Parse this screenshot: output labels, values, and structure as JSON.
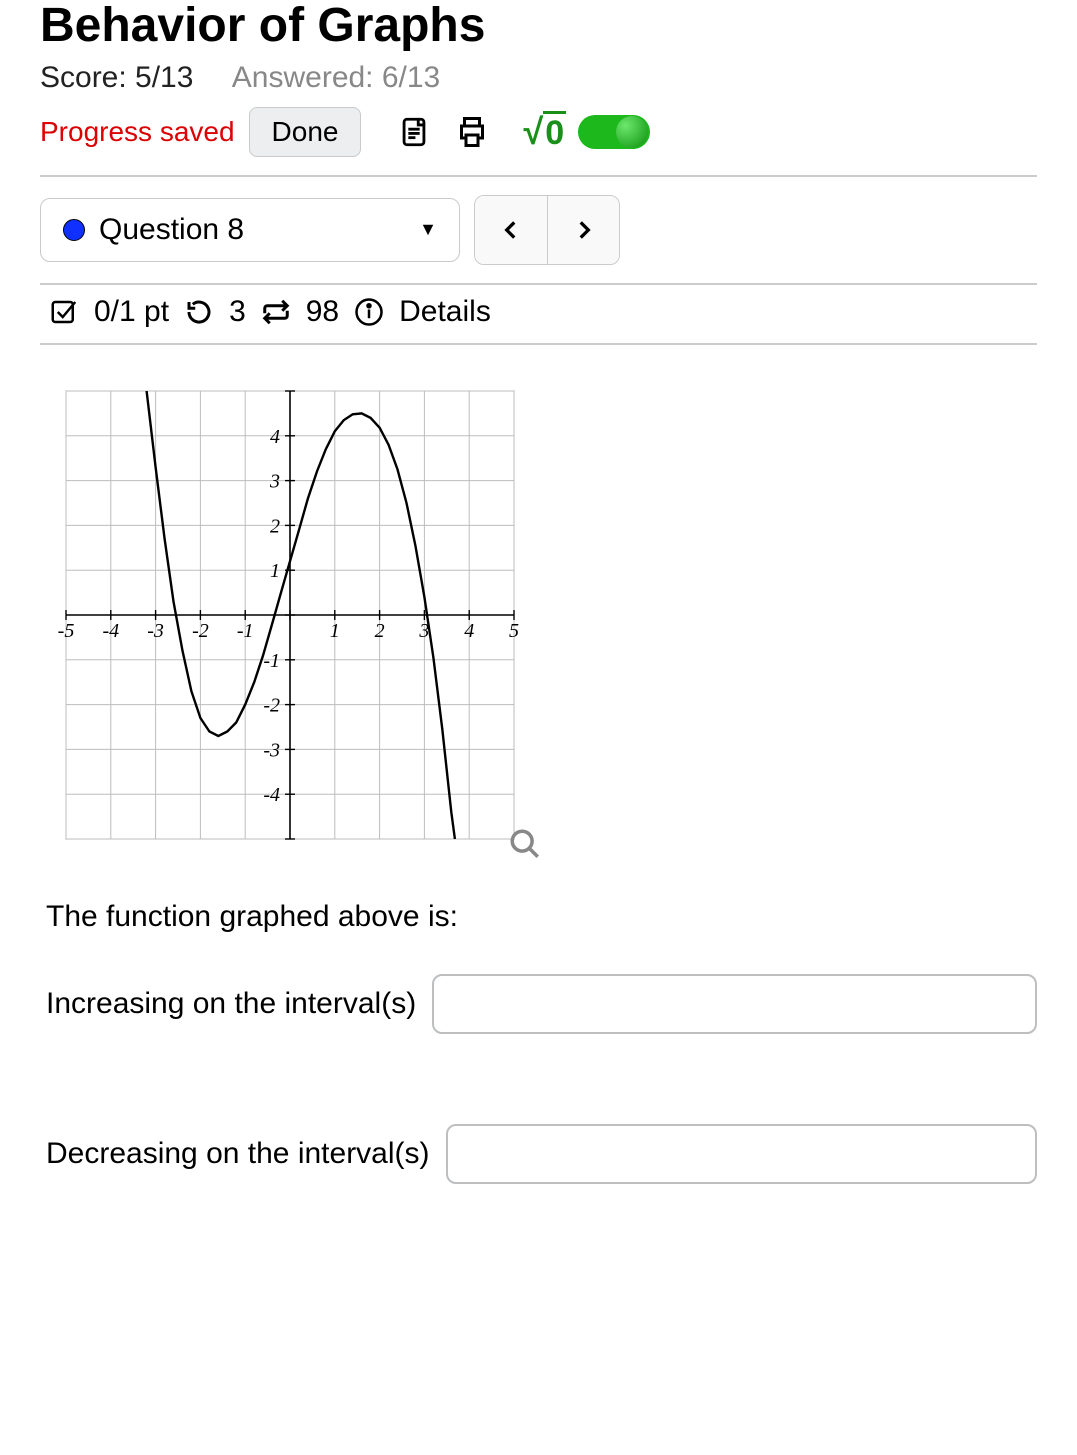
{
  "header": {
    "title_line2": "Behavior of Graphs",
    "score_label": "Score: 5/13",
    "answered_label": "Answered: 6/13",
    "progress_saved": "Progress saved",
    "done_label": "Done",
    "sqrt_radicand": "0"
  },
  "question_nav": {
    "current_label": "Question 8",
    "prev": "‹",
    "next": "›"
  },
  "pts_bar": {
    "points": "0/1 pt",
    "retry_count": "3",
    "reattempt_count": "98",
    "details_label": "Details"
  },
  "graph": {
    "xlim": [
      -5,
      5
    ],
    "ylim": [
      -5,
      5
    ],
    "xtick_step": 1,
    "ytick_step": 1,
    "xtick_labels": [
      "-5",
      "-4",
      "-3",
      "-2",
      "-1",
      "",
      "1",
      "2",
      "3",
      "4",
      "5"
    ],
    "ytick_labels": [
      "",
      "-4",
      "-3",
      "-2",
      "-1",
      "",
      "1",
      "2",
      "3",
      "4",
      ""
    ],
    "grid_color": "#bdbdbd",
    "axis_color": "#000000",
    "curve_color": "#000000",
    "curve_width": 2.4,
    "background_color": "#ffffff",
    "border_color": "#888888",
    "tick_font_family": "Comic Sans MS, cursive",
    "tick_font_size": 20,
    "curve_points": [
      [
        -3.2,
        5.0
      ],
      [
        -3.0,
        3.3
      ],
      [
        -2.8,
        1.7
      ],
      [
        -2.6,
        0.3
      ],
      [
        -2.4,
        -0.8
      ],
      [
        -2.2,
        -1.7
      ],
      [
        -2.0,
        -2.3
      ],
      [
        -1.8,
        -2.6
      ],
      [
        -1.6,
        -2.7
      ],
      [
        -1.4,
        -2.6
      ],
      [
        -1.2,
        -2.4
      ],
      [
        -1.0,
        -2.0
      ],
      [
        -0.8,
        -1.5
      ],
      [
        -0.6,
        -0.9
      ],
      [
        -0.4,
        -0.2
      ],
      [
        -0.2,
        0.5
      ],
      [
        0.0,
        1.2
      ],
      [
        0.2,
        1.9
      ],
      [
        0.4,
        2.6
      ],
      [
        0.6,
        3.2
      ],
      [
        0.8,
        3.7
      ],
      [
        1.0,
        4.1
      ],
      [
        1.2,
        4.35
      ],
      [
        1.4,
        4.48
      ],
      [
        1.6,
        4.5
      ],
      [
        1.8,
        4.4
      ],
      [
        2.0,
        4.18
      ],
      [
        2.2,
        3.8
      ],
      [
        2.4,
        3.25
      ],
      [
        2.6,
        2.5
      ],
      [
        2.8,
        1.55
      ],
      [
        3.0,
        0.4
      ],
      [
        3.2,
        -0.95
      ],
      [
        3.4,
        -2.55
      ],
      [
        3.6,
        -4.4
      ],
      [
        3.68,
        -5.0
      ]
    ]
  },
  "question": {
    "prompt": "The function graphed above is:",
    "increasing_label": "Increasing on the interval(s)",
    "decreasing_label": "Decreasing on the interval(s)",
    "increasing_value": "",
    "decreasing_value": ""
  }
}
